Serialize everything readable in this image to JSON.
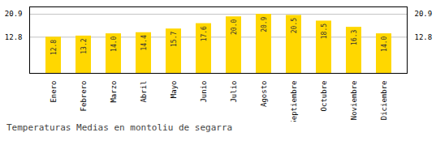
{
  "chart_data": {
    "type": "bar",
    "title": "Temperaturas Medias en montoliu de segarra",
    "categories": [
      "Enero",
      "Febrero",
      "Marzo",
      "Abril",
      "Mayo",
      "Junio",
      "Julio",
      "Agosto",
      "Septiembre",
      "Octubre",
      "Noviembre",
      "Diciembre"
    ],
    "values": [
      12.8,
      13.2,
      14.0,
      14.4,
      15.7,
      17.6,
      20.0,
      20.9,
      20.5,
      18.5,
      16.3,
      14.0
    ],
    "value_labels": [
      "12.8",
      "13.2",
      "14.0",
      "14.4",
      "15.7",
      "17.6",
      "20.0",
      "20.9",
      "20.5",
      "18.5",
      "16.3",
      "14.0"
    ],
    "data_labels": true,
    "color": "#FFD700",
    "ylim": [
      0,
      23.5
    ],
    "yticks": [
      12.8,
      20.9
    ],
    "grid": true
  }
}
